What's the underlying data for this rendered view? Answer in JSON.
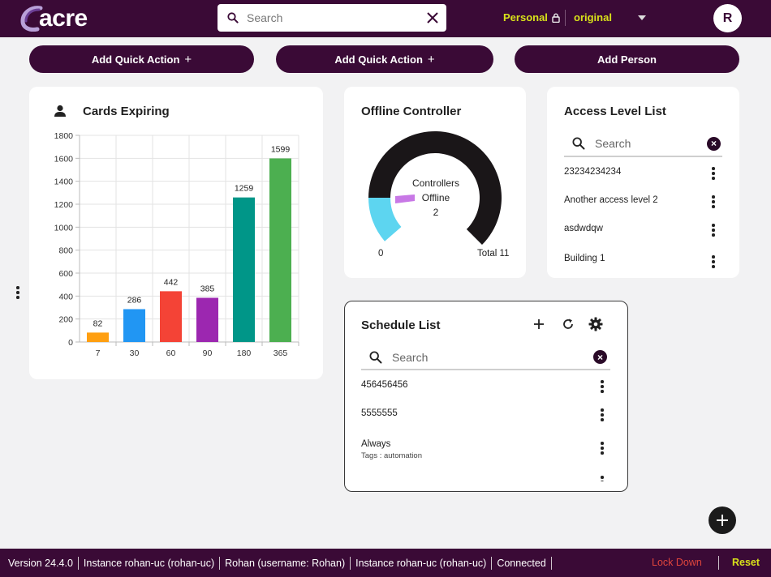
{
  "header": {
    "logo_text": "acre",
    "search_placeholder": "Search",
    "personal_label": "Personal",
    "org_label": "original",
    "avatar_letter": "R"
  },
  "actions": [
    {
      "label": "Add Quick Action",
      "icon": "plus-icon"
    },
    {
      "label": "Add Quick Action",
      "icon": "plus-icon"
    },
    {
      "label": "Add Person"
    }
  ],
  "cards_expiring": {
    "title": "Cards Expiring",
    "icon": "person-icon"
  },
  "chart_data": {
    "type": "bar",
    "categories": [
      "7",
      "30",
      "60",
      "90",
      "180",
      "365"
    ],
    "values": [
      82,
      286,
      442,
      385,
      1259,
      1599
    ],
    "colors": [
      "#ff9f10",
      "#2196f3",
      "#f44336",
      "#9c27b0",
      "#009688",
      "#4caf50"
    ],
    "yticks": [
      0,
      200,
      400,
      600,
      800,
      1000,
      1200,
      1400,
      1600,
      1800
    ],
    "ylim": [
      0,
      1800
    ],
    "grid": true
  },
  "offline_controller": {
    "title": "Offline Controller",
    "center_label_1": "Controllers",
    "center_label_2": "Offline",
    "center_value": "2",
    "min_label": "0",
    "total_label": "Total 11",
    "offline": 2,
    "total": 11,
    "gauge_color": "#1a1618",
    "offline_color": "#5dd5f0",
    "pointer_color": "#c878e6"
  },
  "access_level_list": {
    "title": "Access Level List",
    "search_placeholder": "Search",
    "items": [
      "23234234234",
      "Another access level 2",
      "asdwdqw",
      "Building 1"
    ]
  },
  "schedule_list": {
    "title": "Schedule List",
    "search_placeholder": "Search",
    "items": [
      {
        "name": "456456456",
        "tags": ""
      },
      {
        "name": "5555555",
        "tags": ""
      },
      {
        "name": "Always",
        "tags": "Tags : automation"
      }
    ]
  },
  "footer": {
    "version": "Version 24.4.0",
    "instance_1": "Instance rohan-uc (rohan-uc)",
    "user": "Rohan (username: Rohan)",
    "instance_2": "Instance rohan-uc (rohan-uc)",
    "status": "Connected",
    "lock_down": "Lock Down",
    "reset": "Reset"
  },
  "colors": {
    "brand": "#3a0a36",
    "accent": "#d8e21a",
    "lockdown": "#e0453c"
  }
}
